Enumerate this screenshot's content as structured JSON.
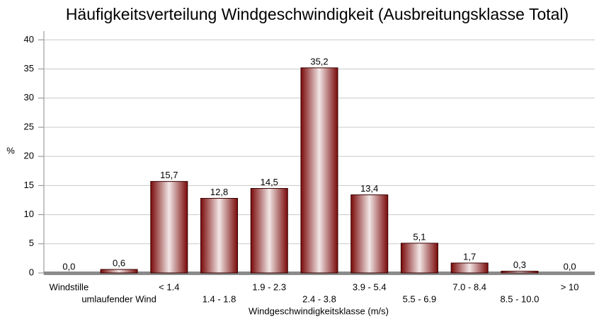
{
  "chart_data": {
    "type": "bar",
    "title": "Häufigkeitsverteilung Windgeschwindigkeit (Ausbreitungsklasse Total)",
    "x_label": "Windgeschwindigkeitsklasse (m/s)",
    "y_label": "%",
    "categories": [
      "Windstille",
      "umlaufender Wind",
      "< 1.4",
      "1.4 - 1.8",
      "1.9 - 2.3",
      "2.4 - 3.8",
      "3.9 - 5.4",
      "5.5 - 6.9",
      "7.0 - 8.4",
      "8.5 - 10.0",
      "> 10"
    ],
    "values": [
      0.0,
      0.6,
      15.7,
      12.8,
      14.5,
      35.2,
      13.4,
      5.1,
      1.7,
      0.3,
      0.0
    ],
    "value_labels": [
      "0,0",
      "0,6",
      "15,7",
      "12,8",
      "14,5",
      "35,2",
      "13,4",
      "5,1",
      "1,7",
      "0,3",
      "0,0"
    ],
    "color": "#7a0a0a",
    "ylim": [
      0,
      41.5
    ],
    "yticks": [
      0,
      5,
      10,
      15,
      20,
      25,
      30,
      35,
      40
    ],
    "grid": true
  }
}
